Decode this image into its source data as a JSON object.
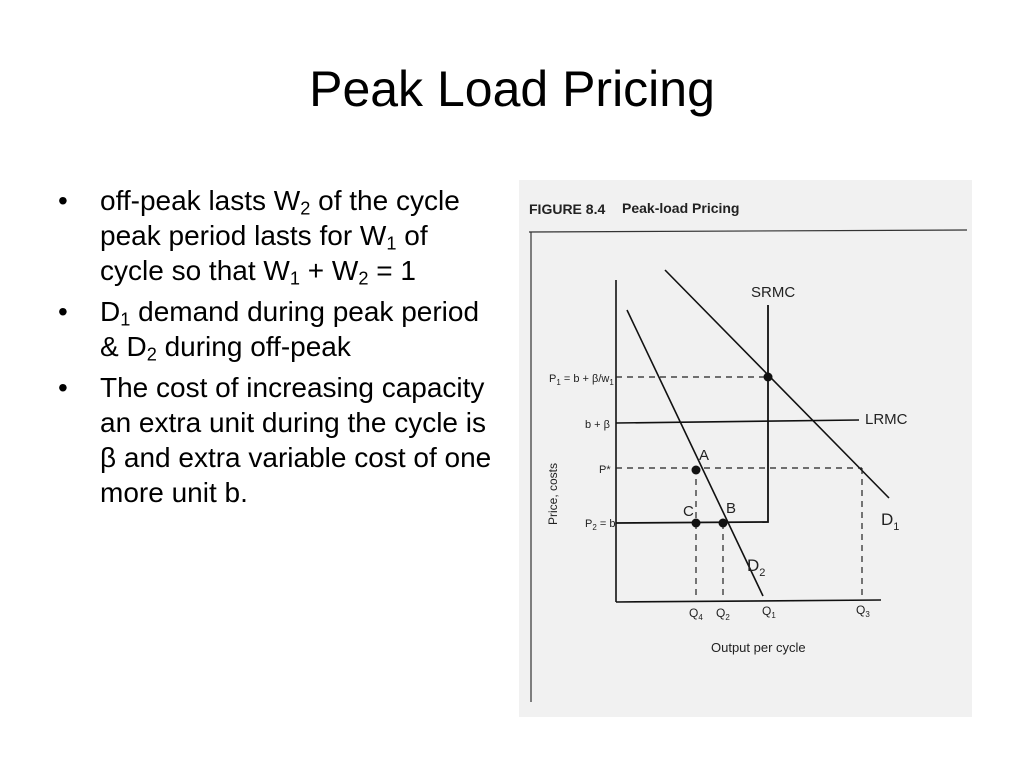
{
  "slide": {
    "title": "Peak Load Pricing"
  },
  "bullets": [
    {
      "segments": [
        {
          "t": "off-peak lasts W"
        },
        {
          "t": "2",
          "sub": true
        },
        {
          "t": " of the cycle peak period lasts for W"
        },
        {
          "t": "1",
          "sub": true
        },
        {
          "t": " of cycle  so that W"
        },
        {
          "t": "1",
          "sub": true
        },
        {
          "t": " + W"
        },
        {
          "t": "2",
          "sub": true
        },
        {
          "t": " = 1"
        }
      ]
    },
    {
      "segments": [
        {
          "t": "D"
        },
        {
          "t": "1",
          "sub": true
        },
        {
          "t": " demand during peak period & D"
        },
        {
          "t": "2",
          "sub": true
        },
        {
          "t": " during off-peak"
        }
      ]
    },
    {
      "segments": [
        {
          "t": "The cost of increasing capacity an extra unit during the cycle is β and extra variable cost of one more unit b."
        }
      ]
    }
  ],
  "bullet_marker": "•",
  "figure": {
    "caption_number": "FIGURE 8.4",
    "caption_title": "Peak-load Pricing",
    "y_axis_label": "Price, costs",
    "x_axis_label": "Output per cycle",
    "curves": {
      "srmc": "SRMC",
      "lrmc": "LRMC",
      "d1": "D",
      "d1_sub": "1",
      "d2": "D",
      "d2_sub": "2"
    },
    "points": {
      "a": "A",
      "b": "B",
      "c": "C"
    },
    "price_labels": {
      "p1": "P",
      "p1_sub": "1",
      "p1_rest": " = b + β/w",
      "p1_rest_sub": "1",
      "b_beta": "b + β",
      "pstar": "P*",
      "p2": "P",
      "p2_sub": "2",
      "p2_rest": " = b"
    },
    "quantity_labels": {
      "q4": "Q",
      "q4_sub": "4",
      "q2": "Q",
      "q2_sub": "2",
      "q1": "Q",
      "q1_sub": "1",
      "q3": "Q",
      "q3_sub": "3"
    }
  }
}
